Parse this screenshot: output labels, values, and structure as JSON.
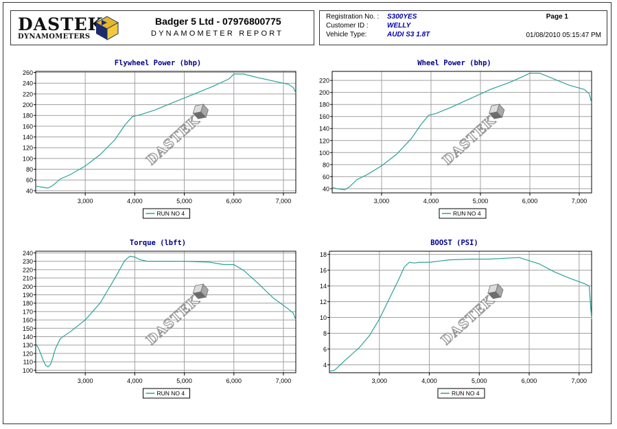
{
  "header": {
    "logo_word": "DASTEK",
    "logo_sub": "DYNAMOMETERS",
    "company": "Badger 5 Ltd - 07976800775",
    "report_title": "DYNAMOMETER REPORT",
    "fields": [
      {
        "label": "Registration No. :",
        "value": "S300YES"
      },
      {
        "label": "Customer ID :",
        "value": "WELLY"
      },
      {
        "label": "Vehicle Type:",
        "value": "AUDI S3 1.8T"
      }
    ],
    "page": "Page 1",
    "datetime": "01/08/2010 05:15:47 PM"
  },
  "colors": {
    "series": "#2aa198",
    "title": "#00008b",
    "grid": "#a0a0a0",
    "watermark": "#8a8a8a"
  },
  "watermark_text": "DASTEK",
  "chart_data": [
    {
      "type": "line",
      "title": "Flywheel Power (bhp)",
      "xlim": [
        2000,
        7250
      ],
      "ylim": [
        36,
        262
      ],
      "xticks": [
        3000,
        4000,
        5000,
        6000,
        7000
      ],
      "xtick_labels": [
        "3,000",
        "4,000",
        "5,000",
        "6,000",
        "7,000"
      ],
      "yticks": [
        40,
        60,
        80,
        100,
        120,
        140,
        160,
        180,
        200,
        220,
        240,
        260
      ],
      "grid": true,
      "legend_position": "bottom-center",
      "series": [
        {
          "name": "RUN NO 4",
          "x": [
            2000,
            2100,
            2250,
            2350,
            2500,
            2700,
            3000,
            3300,
            3600,
            3800,
            3950,
            4100,
            4400,
            4800,
            5200,
            5600,
            5900,
            6000,
            6200,
            6500,
            6800,
            7100,
            7200,
            7250
          ],
          "y": [
            49,
            47,
            45,
            50,
            62,
            70,
            86,
            107,
            135,
            162,
            178,
            181,
            190,
            205,
            220,
            235,
            248,
            257,
            257,
            250,
            244,
            238,
            232,
            222
          ]
        }
      ]
    },
    {
      "type": "line",
      "title": "Wheel Power (bhp)",
      "xlim": [
        2000,
        7250
      ],
      "ylim": [
        33,
        235
      ],
      "xticks": [
        3000,
        4000,
        5000,
        6000,
        7000
      ],
      "xtick_labels": [
        "3,000",
        "4,000",
        "5,000",
        "6,000",
        "7,000"
      ],
      "yticks": [
        40,
        60,
        80,
        100,
        120,
        140,
        160,
        180,
        200,
        220
      ],
      "grid": true,
      "legend_position": "bottom-center",
      "series": [
        {
          "name": "RUN NO 4",
          "x": [
            2000,
            2100,
            2250,
            2350,
            2500,
            2700,
            3000,
            3300,
            3600,
            3800,
            3950,
            4100,
            4400,
            4800,
            5200,
            5600,
            5900,
            6000,
            6200,
            6500,
            6800,
            7100,
            7200,
            7250
          ],
          "y": [
            42,
            40,
            38,
            43,
            55,
            63,
            78,
            97,
            123,
            147,
            162,
            165,
            175,
            190,
            205,
            217,
            228,
            232,
            232,
            222,
            212,
            205,
            198,
            183
          ]
        }
      ]
    },
    {
      "type": "line",
      "title": "Torque (lbft)",
      "xlim": [
        2000,
        7250
      ],
      "ylim": [
        97,
        242
      ],
      "xticks": [
        3000,
        4000,
        5000,
        6000,
        7000
      ],
      "xtick_labels": [
        "3,000",
        "4,000",
        "5,000",
        "6,000",
        "7,000"
      ],
      "yticks": [
        100,
        110,
        120,
        130,
        140,
        150,
        160,
        170,
        180,
        190,
        200,
        210,
        220,
        230,
        240
      ],
      "grid": true,
      "legend_position": "bottom-center",
      "series": [
        {
          "name": "RUN NO 4",
          "x": [
            2000,
            2050,
            2100,
            2150,
            2200,
            2250,
            2300,
            2350,
            2400,
            2500,
            2700,
            3000,
            3300,
            3600,
            3800,
            3900,
            4000,
            4100,
            4250,
            4500,
            5000,
            5500,
            5800,
            6000,
            6200,
            6500,
            6800,
            7100,
            7200,
            7250
          ],
          "y": [
            132,
            127,
            120,
            112,
            106,
            104,
            107,
            116,
            126,
            138,
            146,
            160,
            180,
            210,
            231,
            236,
            235,
            232,
            230,
            230,
            230,
            229,
            226,
            226,
            219,
            203,
            186,
            173,
            168,
            160
          ]
        }
      ]
    },
    {
      "type": "line",
      "title": "BOOST (PSI)",
      "xlim": [
        2000,
        7250
      ],
      "ylim": [
        3,
        18.4
      ],
      "xticks": [
        3000,
        4000,
        5000,
        6000,
        7000
      ],
      "xtick_labels": [
        "3,000",
        "4,000",
        "5,000",
        "6,000",
        "7,000"
      ],
      "yticks": [
        4,
        6,
        8,
        10,
        12,
        14,
        16,
        18
      ],
      "grid": true,
      "legend_position": "bottom-center",
      "series": [
        {
          "name": "RUN NO 4",
          "x": [
            2000,
            2100,
            2300,
            2600,
            2800,
            3000,
            3200,
            3400,
            3500,
            3600,
            3700,
            3800,
            4000,
            4400,
            4800,
            5200,
            5500,
            5800,
            6000,
            6200,
            6500,
            6800,
            7100,
            7200,
            7250
          ],
          "y": [
            3.2,
            3.3,
            4.5,
            6.2,
            7.7,
            9.8,
            12.4,
            15.0,
            16.4,
            17.0,
            16.9,
            17.0,
            17.0,
            17.3,
            17.4,
            17.4,
            17.5,
            17.6,
            17.2,
            16.8,
            15.8,
            15.0,
            14.3,
            14.0,
            9.8
          ]
        }
      ]
    }
  ]
}
